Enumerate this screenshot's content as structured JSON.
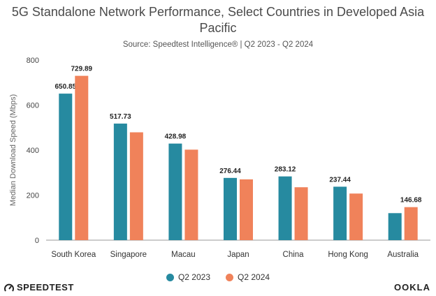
{
  "chart_data": {
    "type": "bar",
    "title": "5G Standalone Network Performance, Select Countries in Developed Asia Pacific",
    "subtitle": "Source: Speedtest Intelligence® | Q2 2023 - Q2 2024",
    "ylabel": "Median Download Speed (Mbps)",
    "xlabel": "",
    "ylim": [
      0,
      800
    ],
    "yticks": [
      0,
      200,
      400,
      600,
      800
    ],
    "grid": false,
    "legend_position": "bottom",
    "categories": [
      "South Korea",
      "Singapore",
      "Macau",
      "Japan",
      "China",
      "Hong Kong",
      "Australia"
    ],
    "series": [
      {
        "name": "Q2 2023",
        "color": "#268aa0",
        "values": [
          650.85,
          517.73,
          428.98,
          276.44,
          283.12,
          237.44,
          120
        ],
        "labels": [
          "650.85",
          "517.73",
          "428.98",
          "276.44",
          "283.12",
          "237.44",
          ""
        ]
      },
      {
        "name": "Q2 2024",
        "color": "#f0825a",
        "values": [
          729.89,
          479,
          402,
          270,
          235,
          207,
          146.68
        ],
        "labels": [
          "729.89",
          "",
          "",
          "",
          "",
          "",
          "146.68"
        ]
      }
    ]
  },
  "brand": {
    "left": "SPEEDTEST",
    "right": "OOKLA"
  }
}
